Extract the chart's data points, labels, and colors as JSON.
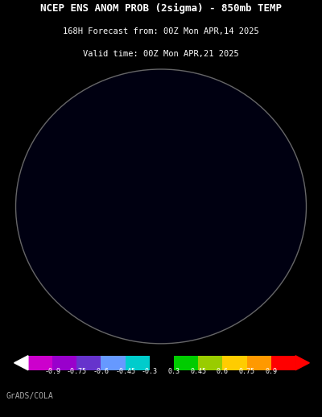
{
  "title_line1": "NCEP ENS ANOM PROB (2sigma) - 850mb TEMP",
  "title_line2": "168H Forecast from: 00Z Mon APR,14 2025",
  "title_line3": "Valid time: 00Z Mon APR,21 2025",
  "background_color": "#000000",
  "title_color": "#ffffff",
  "colorbar_labels": [
    "-0.9",
    "-0.75",
    "-0.6",
    "-0.45",
    "-0.3",
    "0.3",
    "0.45",
    "0.6",
    "0.75",
    "0.9"
  ],
  "colorbar_colors": [
    "#cc00cc",
    "#9900cc",
    "#6633cc",
    "#6699ff",
    "#00cccc",
    "#000000",
    "#00cc00",
    "#99cc00",
    "#ffcc00",
    "#ff9900",
    "#ff0000"
  ],
  "footer_text": "GrADS/COLA",
  "footer_color": "#aaaaaa",
  "figsize": [
    4.0,
    5.18
  ],
  "dpi": 100,
  "map_extent_lat_min": 10,
  "central_longitude": -90,
  "central_latitude": 90,
  "grid_lats": [
    20,
    40,
    60,
    80
  ],
  "grid_lons_step": 30,
  "coastline_color": "#ffffff",
  "grid_color": "#555555",
  "border_color": "#ffffff"
}
